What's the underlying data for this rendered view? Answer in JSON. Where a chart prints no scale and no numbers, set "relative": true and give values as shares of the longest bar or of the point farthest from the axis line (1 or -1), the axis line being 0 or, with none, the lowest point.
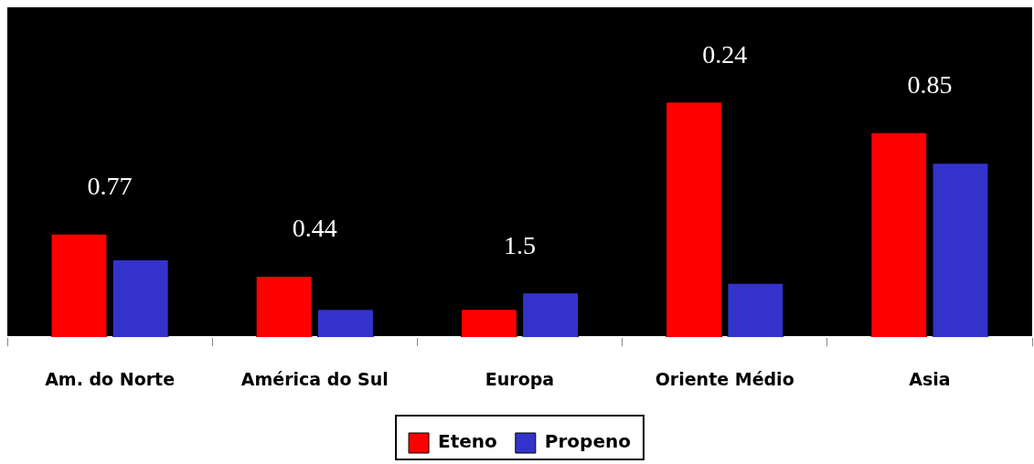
{
  "chart_data": {
    "type": "bar",
    "relative": true,
    "categories": [
      "Am. do Norte",
      "América do Sul",
      "Europa",
      "Oriente Médio",
      "Asia"
    ],
    "series": [
      {
        "name": "Eteno",
        "color": "#ff0000",
        "values": [
          0.44,
          0.26,
          0.12,
          1,
          0.87
        ]
      },
      {
        "name": "Propeno",
        "color": "#3333cc",
        "values": [
          0.33,
          0.12,
          0.19,
          0.23,
          0.74
        ]
      }
    ],
    "annotations": [
      "0.77",
      "0.44",
      "1.5",
      "0.24",
      "0.85"
    ],
    "legend": "bottom",
    "grid": false
  }
}
